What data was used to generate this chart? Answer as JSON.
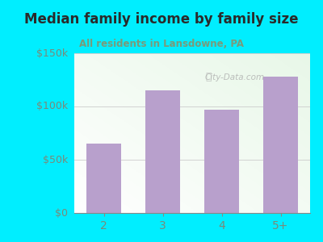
{
  "categories": [
    "2",
    "3",
    "4",
    "5+"
  ],
  "values": [
    65000,
    115000,
    97000,
    128000
  ],
  "bar_color": "#b8a0cc",
  "title": "Median family income by family size",
  "subtitle_text": "All residents in Lansdowne, PA",
  "title_color": "#2a2a2a",
  "subtitle_color": "#7a9a7a",
  "ytick_color": "#7a8a7a",
  "xtick_color": "#7a8a7a",
  "background_color": "#00eeff",
  "ylim": [
    0,
    150000
  ],
  "yticks": [
    0,
    50000,
    100000,
    150000
  ],
  "ytick_labels": [
    "$0",
    "$50k",
    "$100k",
    "$150k"
  ],
  "watermark": "City-Data.com",
  "figsize": [
    4.0,
    3.0
  ],
  "dpi": 100
}
